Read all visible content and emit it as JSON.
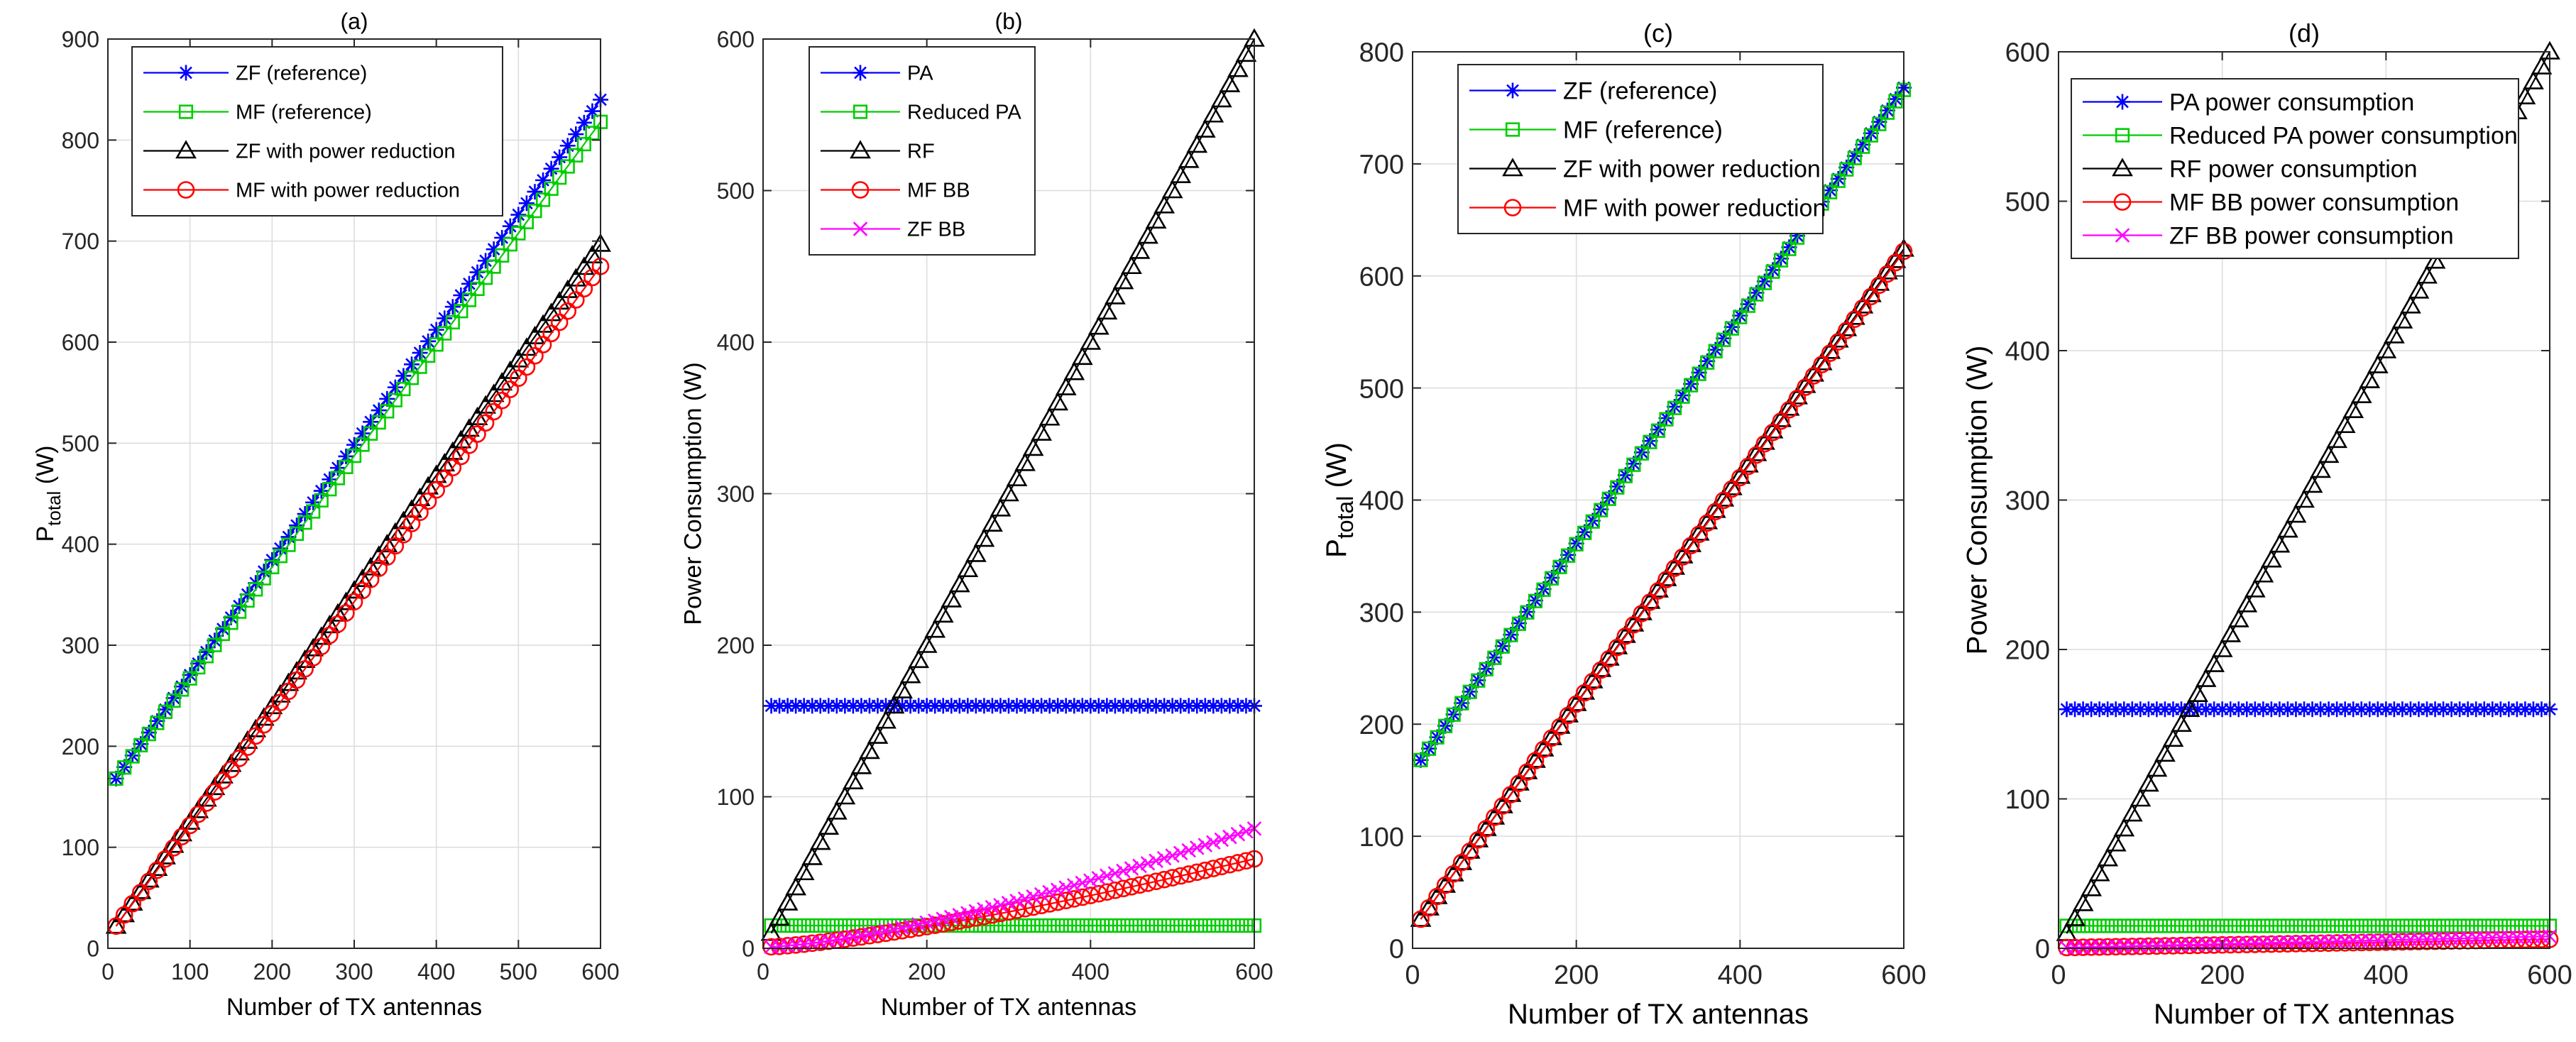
{
  "chart_data": [
    {
      "type": "line",
      "title": "(a)",
      "xlabel": "Number of TX antennas",
      "ylabel": "P",
      "ylabel_sub": "total",
      "ylabel_suffix": " (W)",
      "xlim": [
        0,
        600
      ],
      "ylim": [
        0,
        900
      ],
      "xticks": [
        0,
        100,
        200,
        300,
        400,
        500,
        600
      ],
      "yticks": [
        0,
        100,
        200,
        300,
        400,
        500,
        600,
        700,
        800,
        900
      ],
      "grid": true,
      "legend_position": "top-left",
      "x": {
        "start": 10,
        "end": 600,
        "step": 10
      },
      "series": [
        {
          "name": "ZF (reference)",
          "color": "#0000ff",
          "marker": "star",
          "y0": 168,
          "y1": 840
        },
        {
          "name": "MF (reference)",
          "color": "#00cc00",
          "marker": "square",
          "y0": 168,
          "y1": 818
        },
        {
          "name": "ZF with power reduction",
          "color": "#000000",
          "marker": "triangle",
          "y0": 22,
          "y1": 697
        },
        {
          "name": "MF with power reduction",
          "color": "#ff0000",
          "marker": "circle",
          "y0": 22,
          "y1": 675
        }
      ]
    },
    {
      "type": "line",
      "title": "(b)",
      "xlabel": "Number of TX antennas",
      "ylabel": "Power Consumption (W)",
      "xlim": [
        0,
        600
      ],
      "ylim": [
        0,
        600
      ],
      "xticks": [
        0,
        200,
        400,
        600
      ],
      "yticks": [
        0,
        100,
        200,
        300,
        400,
        500,
        600
      ],
      "grid": true,
      "legend_position": "top-left",
      "x": {
        "start": 10,
        "end": 600,
        "step": 10
      },
      "series": [
        {
          "name": "PA",
          "color": "#0000ff",
          "marker": "star",
          "y0": 160,
          "y1": 160
        },
        {
          "name": "Reduced PA",
          "color": "#00cc00",
          "marker": "square",
          "y0": 15,
          "y1": 15
        },
        {
          "name": "RF",
          "color": "#000000",
          "marker": "triangle",
          "y0": 10,
          "y1": 600
        },
        {
          "name": "MF BB",
          "color": "#ff0000",
          "marker": "circle",
          "y0": 1,
          "y1": 59,
          "curve": 1.3
        },
        {
          "name": "ZF BB",
          "color": "#ff00ff",
          "marker": "x",
          "y0": 1,
          "y1": 79,
          "curve": 1.4
        }
      ]
    },
    {
      "type": "line",
      "title": "(c)",
      "xlabel": "Number of TX antennas",
      "ylabel": "P",
      "ylabel_sub": "total",
      "ylabel_suffix": " (W)",
      "xlim": [
        0,
        600
      ],
      "ylim": [
        0,
        800
      ],
      "xticks": [
        0,
        200,
        400,
        600
      ],
      "yticks": [
        0,
        100,
        200,
        300,
        400,
        500,
        600,
        700,
        800
      ],
      "grid": true,
      "legend_position": "top-left",
      "x": {
        "start": 10,
        "end": 600,
        "step": 10
      },
      "series": [
        {
          "name": "ZF (reference)",
          "color": "#0000ff",
          "marker": "star",
          "y0": 168,
          "y1": 768
        },
        {
          "name": "MF (reference)",
          "color": "#00cc00",
          "marker": "square",
          "y0": 168,
          "y1": 766
        },
        {
          "name": "ZF with power reduction",
          "color": "#000000",
          "marker": "triangle",
          "y0": 26,
          "y1": 624
        },
        {
          "name": "MF with power reduction",
          "color": "#ff0000",
          "marker": "circle",
          "y0": 26,
          "y1": 622
        }
      ]
    },
    {
      "type": "line",
      "title": "(d)",
      "xlabel": "Number of TX antennas",
      "ylabel": "Power Consumption (W)",
      "xlim": [
        0,
        600
      ],
      "ylim": [
        0,
        600
      ],
      "xticks": [
        0,
        200,
        400,
        600
      ],
      "yticks": [
        0,
        100,
        200,
        300,
        400,
        500,
        600
      ],
      "grid": true,
      "legend_position": "top-left",
      "x": {
        "start": 10,
        "end": 600,
        "step": 10
      },
      "series": [
        {
          "name": "PA power consumption",
          "color": "#0000ff",
          "marker": "star",
          "y0": 160,
          "y1": 160
        },
        {
          "name": "Reduced PA power consumption",
          "color": "#00cc00",
          "marker": "square",
          "y0": 15,
          "y1": 15
        },
        {
          "name": "RF power consumption",
          "color": "#000000",
          "marker": "triangle",
          "y0": 10,
          "y1": 600
        },
        {
          "name": "MF BB power consumption",
          "color": "#ff0000",
          "marker": "circle",
          "y0": 0.5,
          "y1": 6
        },
        {
          "name": "ZF BB power consumption",
          "color": "#ff00ff",
          "marker": "x",
          "y0": 0.5,
          "y1": 8
        }
      ]
    }
  ]
}
